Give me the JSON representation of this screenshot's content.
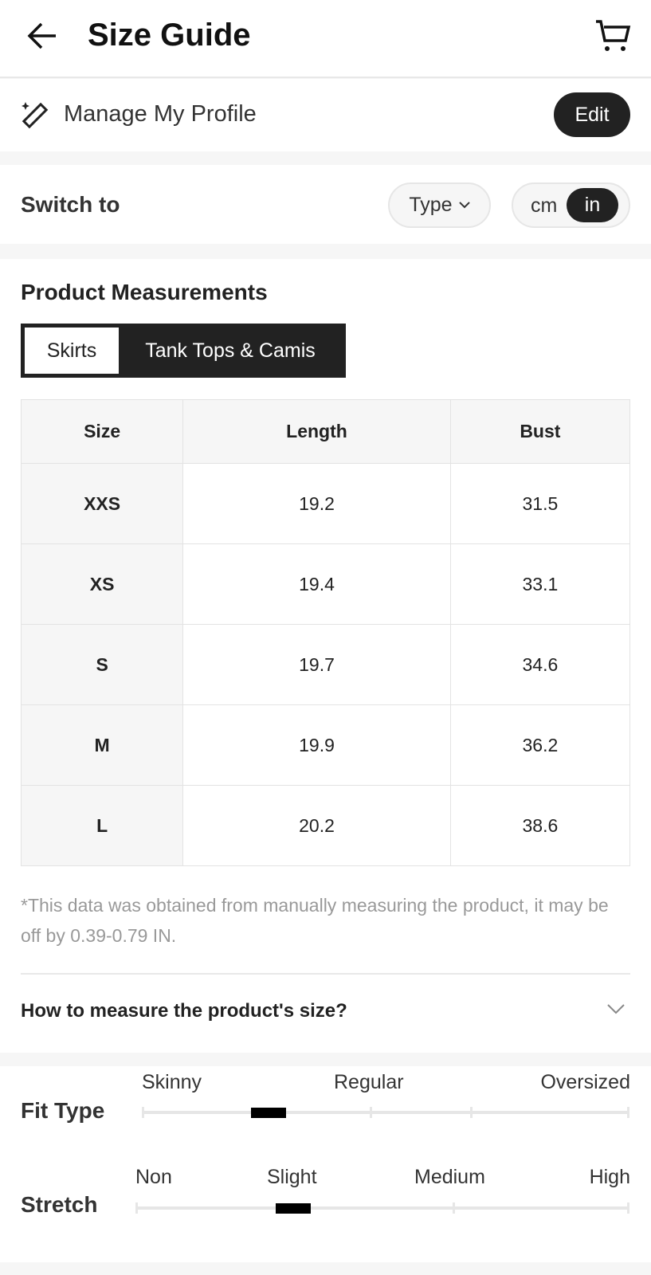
{
  "header": {
    "title": "Size Guide",
    "back_icon": "arrow-left-icon",
    "cart_icon": "cart-icon"
  },
  "profile": {
    "label": "Manage My Profile",
    "edit": "Edit",
    "icon": "ruler-sparkle-icon"
  },
  "switch": {
    "label": "Switch to",
    "type": "Type",
    "units": [
      "cm",
      "in"
    ],
    "selected_unit": "in"
  },
  "measurements": {
    "title": "Product Measurements",
    "tabs": [
      {
        "label": "Skirts",
        "active": true
      },
      {
        "label": "Tank Tops & Camis",
        "active": false
      }
    ],
    "columns": [
      "Size",
      "Length",
      "Bust"
    ],
    "rows": [
      [
        "XXS",
        "19.2",
        "31.5"
      ],
      [
        "XS",
        "19.4",
        "33.1"
      ],
      [
        "S",
        "19.7",
        "34.6"
      ],
      [
        "M",
        "19.9",
        "36.2"
      ],
      [
        "L",
        "20.2",
        "38.6"
      ]
    ],
    "note": "*This data was obtained from manually measuring the product, it may be off by 0.39-0.79 IN.",
    "how_to": "How to measure the product's size?"
  },
  "fit": {
    "label": "Fit Type",
    "levels": [
      "Skinny",
      "Regular",
      "Oversized"
    ],
    "value_fraction": 0.26
  },
  "stretch": {
    "label": "Stretch",
    "levels": [
      "Non",
      "Slight",
      "Medium",
      "High"
    ],
    "value_fraction": 0.32
  }
}
